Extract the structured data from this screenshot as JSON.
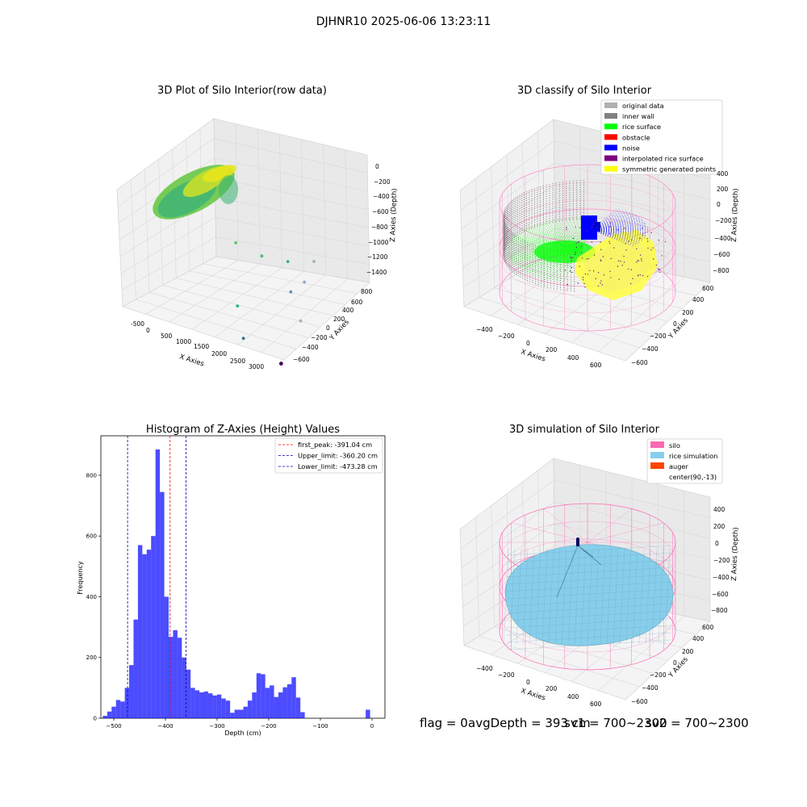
{
  "suptitle": "DJHNR10 2025-06-06 13:23:11",
  "status_line": {
    "flag": "flag = 0",
    "avg": "avgDepth = 393 cm",
    "sv1": "sv1 = 700~2300",
    "sv2": "sv2 = 700~2300"
  },
  "chart_data": [
    {
      "type": "scatter",
      "title": "3D Plot of Silo Interior(row data)",
      "xlabel": "X Axies",
      "ylabel": "Y Axies",
      "zlabel": "Z Axies (Depth)",
      "xticks": [
        "-500",
        "0",
        "500",
        "1000",
        "1500",
        "2000",
        "2500",
        "3000"
      ],
      "yticks": [
        "800",
        "600",
        "400",
        "200",
        "0",
        "−200",
        "−400",
        "−600"
      ],
      "zticks": [
        "0",
        "−200",
        "−400",
        "−600",
        "−800",
        "−1000",
        "−1200",
        "−1400"
      ],
      "xlim": [
        -700,
        3200
      ],
      "ylim": [
        -700,
        900
      ],
      "zlim": [
        -1450,
        50
      ],
      "grid": true,
      "colormap": "viridis",
      "points": [
        {
          "x": 1000,
          "y": 100,
          "z": -620
        },
        {
          "x": 1500,
          "y": 200,
          "z": -720
        },
        {
          "x": 2000,
          "y": 300,
          "z": -740
        },
        {
          "x": 2500,
          "y": 400,
          "z": -700
        },
        {
          "x": 2400,
          "y": 300,
          "z": -900
        },
        {
          "x": 2200,
          "y": 200,
          "z": -1000
        },
        {
          "x": 1300,
          "y": -100,
          "z": -1180
        },
        {
          "x": 2700,
          "y": 0,
          "z": -1170
        },
        {
          "x": 1700,
          "y": -300,
          "z": -1400
        },
        {
          "x": 3000,
          "y": -600,
          "z": -1380
        }
      ]
    },
    {
      "type": "scatter",
      "title": "3D classify of Silo Interior",
      "xlabel": "X Axies",
      "ylabel": "Y Axies",
      "zlabel": "Z Axies (Depth)",
      "xticks": [
        "−400",
        "−200",
        "0",
        "200",
        "400",
        "600"
      ],
      "yticks": [
        "600",
        "400",
        "200",
        "0",
        "−200",
        "−400",
        "−600"
      ],
      "zticks": [
        "200",
        "0",
        "−200",
        "−400",
        "−600",
        "−800"
      ],
      "zticks_top": "400",
      "xlim": [
        -600,
        700
      ],
      "ylim": [
        -700,
        700
      ],
      "zlim": [
        -900,
        450
      ],
      "grid": true,
      "legend_position": "top-right",
      "legend": [
        {
          "label": "original data",
          "color": "#b0b0b0"
        },
        {
          "label": "inner wall",
          "color": "#808080"
        },
        {
          "label": "rice surface",
          "color": "#00ff00"
        },
        {
          "label": "obstacle",
          "color": "#ff0000"
        },
        {
          "label": "noise",
          "color": "#0000ff"
        },
        {
          "label": "interpolated rice surface",
          "color": "#800080"
        },
        {
          "label": "symmetric generated points",
          "color": "#ffff00"
        }
      ]
    },
    {
      "type": "bar",
      "title": "Histogram of Z-Axies (Height) Values",
      "xlabel": "Depth (cm)",
      "ylabel": "Frequency",
      "xlim": [
        -525,
        25
      ],
      "ylim": [
        0,
        930
      ],
      "xticks": [
        -500,
        -400,
        -300,
        -200,
        -100,
        0
      ],
      "yticks": [
        0,
        200,
        400,
        600,
        800
      ],
      "bin_width": 8.5,
      "color": "#0000ff",
      "bins": [
        {
          "x": -517,
          "v": 8
        },
        {
          "x": -508.5,
          "v": 22
        },
        {
          "x": -500,
          "v": 38
        },
        {
          "x": -491.5,
          "v": 60
        },
        {
          "x": -483,
          "v": 55
        },
        {
          "x": -474.5,
          "v": 100
        },
        {
          "x": -466,
          "v": 175
        },
        {
          "x": -457.5,
          "v": 325
        },
        {
          "x": -449,
          "v": 570
        },
        {
          "x": -440.5,
          "v": 540
        },
        {
          "x": -432,
          "v": 555
        },
        {
          "x": -423.5,
          "v": 600
        },
        {
          "x": -415,
          "v": 885
        },
        {
          "x": -406.5,
          "v": 745
        },
        {
          "x": -398,
          "v": 400
        },
        {
          "x": -389.5,
          "v": 268
        },
        {
          "x": -381,
          "v": 290
        },
        {
          "x": -372.5,
          "v": 265
        },
        {
          "x": -364,
          "v": 200
        },
        {
          "x": -355.5,
          "v": 160
        },
        {
          "x": -347,
          "v": 100
        },
        {
          "x": -338.5,
          "v": 92
        },
        {
          "x": -330,
          "v": 85
        },
        {
          "x": -321.5,
          "v": 88
        },
        {
          "x": -313,
          "v": 82
        },
        {
          "x": -304.5,
          "v": 75
        },
        {
          "x": -296,
          "v": 78
        },
        {
          "x": -287.5,
          "v": 65
        },
        {
          "x": -279,
          "v": 58
        },
        {
          "x": -270.5,
          "v": 18
        },
        {
          "x": -262,
          "v": 28
        },
        {
          "x": -253.5,
          "v": 28
        },
        {
          "x": -245,
          "v": 38
        },
        {
          "x": -236.5,
          "v": 58
        },
        {
          "x": -228,
          "v": 85
        },
        {
          "x": -219.5,
          "v": 148
        },
        {
          "x": -211,
          "v": 145
        },
        {
          "x": -202.5,
          "v": 100
        },
        {
          "x": -194,
          "v": 108
        },
        {
          "x": -185.5,
          "v": 70
        },
        {
          "x": -177,
          "v": 85
        },
        {
          "x": -168.5,
          "v": 102
        },
        {
          "x": -160,
          "v": 112
        },
        {
          "x": -151.5,
          "v": 135
        },
        {
          "x": -143,
          "v": 68
        },
        {
          "x": -134.5,
          "v": 20
        },
        {
          "x": -8,
          "v": 28
        }
      ],
      "vlines": [
        {
          "x": -391.04,
          "color": "#ff0000",
          "label": "first_peak: -391.04 cm"
        },
        {
          "x": -360.2,
          "color": "#0000aa",
          "label": "Upper_limit: -360.20 cm"
        },
        {
          "x": -473.28,
          "color": "#0000aa",
          "label": "Lower_limit: -473.28 cm"
        }
      ],
      "legend_position": "top-right"
    },
    {
      "type": "scatter",
      "title": "3D simulation of Silo Interior",
      "xlabel": "X Axies",
      "ylabel": "Y Axies",
      "zlabel": "Z Axies (Depth)",
      "xticks": [
        "−400",
        "−200",
        "0",
        "200",
        "400",
        "600"
      ],
      "yticks": [
        "600",
        "400",
        "200",
        "0",
        "−200",
        "−400",
        "−600"
      ],
      "zticks": [
        "400",
        "200",
        "0",
        "−200",
        "−400",
        "−600",
        "−800"
      ],
      "grid": true,
      "legend_position": "top-right",
      "legend": [
        {
          "label": "silo",
          "color": "#ff69b4"
        },
        {
          "label": "rice simulation",
          "color": "#87ceeb"
        },
        {
          "label": "auger",
          "color": "#ff4500"
        },
        {
          "label": "center(90,-13)",
          "color": ""
        }
      ]
    }
  ]
}
